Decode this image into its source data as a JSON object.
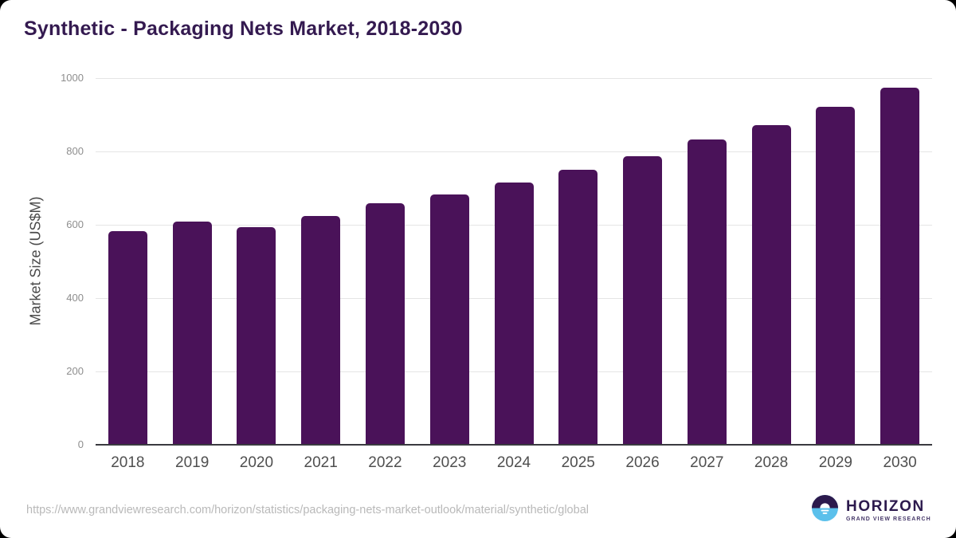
{
  "title": "Synthetic - Packaging Nets Market, 2018-2030",
  "chart_data": {
    "type": "bar",
    "categories": [
      "2018",
      "2019",
      "2020",
      "2021",
      "2022",
      "2023",
      "2024",
      "2025",
      "2026",
      "2027",
      "2028",
      "2029",
      "2030"
    ],
    "values": [
      583,
      609,
      594,
      625,
      658,
      682,
      716,
      751,
      788,
      832,
      872,
      921,
      973
    ],
    "title": "Synthetic - Packaging Nets Market, 2018-2030",
    "xlabel": "",
    "ylabel": "Market Size (US$M)",
    "ylim": [
      0,
      1000
    ],
    "yticks": [
      0,
      200,
      400,
      600,
      800,
      1000
    ],
    "grid": true,
    "legend": false,
    "bar_color": "#4a1259"
  },
  "colors": {
    "bar": "#4a1259",
    "title_text": "#341a50",
    "axis_line": "#3a3a40",
    "gridline": "#e5e5e5",
    "logo_dark": "#2c1a4d",
    "logo_blue": "#5bc0eb"
  },
  "footer": {
    "source_url": "https://www.grandviewresearch.com/horizon/statistics/packaging-nets-market-outlook/material/synthetic/global",
    "logo": {
      "brand": "HORIZON",
      "tagline": "GRAND VIEW RESEARCH"
    }
  }
}
